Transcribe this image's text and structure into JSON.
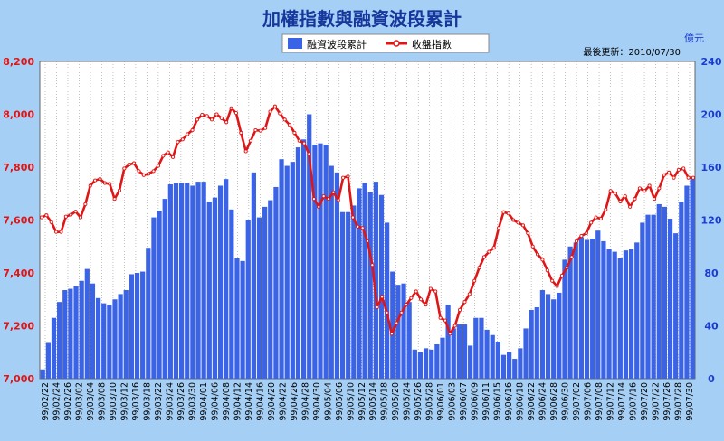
{
  "chart_data": {
    "type": "bar+line",
    "title": "加權指數與融資波段累計",
    "update_label": "最後更新",
    "update_separator": "：",
    "update_date": "2010/07/30",
    "right_axis_unit": "億元",
    "legend": [
      {
        "name": "融資波段累計",
        "kind": "bar",
        "color": "#3a63e6"
      },
      {
        "name": "收盤指數",
        "kind": "line",
        "color": "#e01515"
      }
    ],
    "left_axis": {
      "min": 7000,
      "max": 8200,
      "step": 200,
      "color": "#e01515",
      "tick_labels": [
        "7,000",
        "7,200",
        "7,400",
        "7,600",
        "7,800",
        "8,000",
        "8,200"
      ]
    },
    "right_axis": {
      "min": 0,
      "max": 240,
      "step": 40,
      "color": "#1a3cd1",
      "tick_labels": [
        "0",
        "40",
        "80",
        "120",
        "160",
        "200",
        "240"
      ]
    },
    "grid": "vertical-dotted",
    "x_tick_labels": [
      "99/02/22",
      "99/02/24",
      "99/02/26",
      "99/03/02",
      "99/03/04",
      "99/03/08",
      "99/03/10",
      "99/03/12",
      "99/03/16",
      "99/03/18",
      "99/03/22",
      "99/03/24",
      "99/03/26",
      "99/03/30",
      "99/04/01",
      "99/04/06",
      "99/04/08",
      "99/04/12",
      "99/04/14",
      "99/04/16",
      "99/04/20",
      "99/04/22",
      "99/04/26",
      "99/04/28",
      "99/04/30",
      "99/05/04",
      "99/05/06",
      "99/05/10",
      "99/05/12",
      "99/05/14",
      "99/05/18",
      "99/05/20",
      "99/05/24",
      "99/05/26",
      "99/05/28",
      "99/06/01",
      "99/06/03",
      "99/06/07",
      "99/06/09",
      "99/06/11",
      "99/06/15",
      "99/06/16",
      "99/06/18",
      "99/06/22",
      "99/06/24",
      "99/06/28",
      "99/06/30",
      "99/07/02",
      "99/07/06",
      "99/07/08",
      "99/07/12",
      "99/07/14",
      "99/07/16",
      "99/07/20",
      "99/07/22",
      "99/07/26",
      "99/07/28",
      "99/07/30"
    ],
    "bar_values": [
      7,
      27,
      46,
      58,
      67,
      68,
      70,
      74,
      83,
      72,
      61,
      57,
      56,
      60,
      64,
      67,
      79,
      80,
      81,
      99,
      122,
      127,
      136,
      147,
      148,
      148,
      148,
      146,
      149,
      149,
      134,
      137,
      146,
      151,
      128,
      91,
      89,
      120,
      156,
      122,
      130,
      135,
      145,
      166,
      161,
      164,
      175,
      181,
      200,
      177,
      178,
      177,
      161,
      156,
      126,
      126,
      131,
      144,
      148,
      141,
      149,
      139,
      118,
      81,
      71,
      72,
      58,
      22,
      20,
      23,
      22,
      26,
      31,
      56,
      38,
      41,
      41,
      25,
      46,
      46,
      37,
      33,
      28,
      18,
      20,
      15,
      23,
      38,
      52,
      54,
      67,
      64,
      60,
      65,
      90,
      100,
      103,
      107,
      105,
      106,
      112,
      104,
      98,
      96,
      91,
      97,
      98,
      103,
      118,
      124,
      124,
      132,
      130,
      121,
      110,
      134,
      146,
      151
    ],
    "line_values": [
      7610,
      7618,
      7592,
      7555,
      7555,
      7613,
      7620,
      7632,
      7610,
      7660,
      7730,
      7750,
      7755,
      7740,
      7737,
      7680,
      7712,
      7795,
      7810,
      7815,
      7785,
      7770,
      7775,
      7785,
      7805,
      7843,
      7856,
      7838,
      7895,
      7905,
      7925,
      7940,
      7980,
      7998,
      7994,
      7980,
      8000,
      7985,
      7970,
      8023,
      8005,
      7930,
      7860,
      7900,
      7940,
      7938,
      7948,
      8010,
      8030,
      8003,
      7980,
      7960,
      7930,
      7900,
      7890,
      7850,
      7680,
      7650,
      7690,
      7680,
      7705,
      7675,
      7760,
      7765,
      7610,
      7575,
      7570,
      7520,
      7430,
      7270,
      7310,
      7250,
      7170,
      7210,
      7250,
      7280,
      7305,
      7330,
      7300,
      7280,
      7340,
      7330,
      7230,
      7220,
      7170,
      7200,
      7260,
      7290,
      7320,
      7370,
      7420,
      7460,
      7480,
      7495,
      7570,
      7630,
      7625,
      7600,
      7590,
      7580,
      7550,
      7500,
      7470,
      7450,
      7410,
      7370,
      7350,
      7390,
      7420,
      7460,
      7520,
      7540,
      7550,
      7590,
      7610,
      7605,
      7640,
      7710,
      7700,
      7670,
      7690,
      7650,
      7680,
      7720,
      7710,
      7730,
      7680,
      7720,
      7770,
      7780,
      7760,
      7790,
      7795,
      7760,
      7760
    ]
  }
}
